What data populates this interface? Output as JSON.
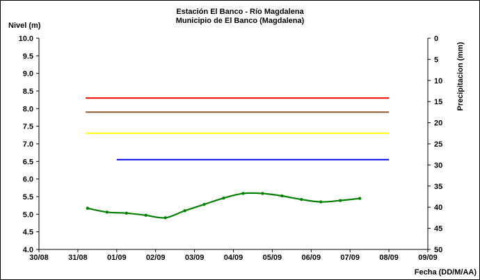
{
  "chart_data": {
    "type": "line",
    "title": "Estación El Banco - Río Magdalena",
    "subtitle": "Municipio de El Banco (Magdalena)",
    "ylabel": "Nivel (m)",
    "y2label": "Precipitacion (mm)",
    "xlabel": "Fecha (DD/M/AA)",
    "x_ticks": [
      "30/08",
      "31/08",
      "01/09",
      "02/09",
      "03/09",
      "04/09",
      "05/09",
      "06/09",
      "07/09",
      "08/09",
      "09/09"
    ],
    "y_ticks": [
      "4.0",
      "4.5",
      "5.0",
      "5.5",
      "6.0",
      "6.5",
      "7.0",
      "7.5",
      "8.0",
      "8.5",
      "9.0",
      "9.5",
      "10.0"
    ],
    "y2_ticks": [
      "0",
      "5",
      "10",
      "15",
      "20",
      "25",
      "30",
      "35",
      "40",
      "45",
      "50"
    ],
    "ylim": [
      4.0,
      10.0
    ],
    "y2lim": [
      0,
      50
    ],
    "y2_inverted": true,
    "grid": false,
    "reference_lines": [
      {
        "color": "#ff0000",
        "y": 8.3,
        "x_start": 1.2,
        "x_end": 9.0
      },
      {
        "color": "#8b5a2b",
        "y": 7.9,
        "x_start": 1.2,
        "x_end": 9.0
      },
      {
        "color": "#ffff00",
        "y": 7.3,
        "x_start": 1.2,
        "x_end": 9.0
      },
      {
        "color": "#0000ff",
        "y": 6.55,
        "x_start": 2.0,
        "x_end": 9.0
      }
    ],
    "series": [
      {
        "color": "#008000",
        "x": [
          1.25,
          1.75,
          2.25,
          2.75,
          3.25,
          3.75,
          4.25,
          4.75,
          5.25,
          5.75,
          6.25,
          6.75,
          7.25,
          7.75,
          8.25
        ],
        "values": [
          5.17,
          5.06,
          5.03,
          4.97,
          4.9,
          5.1,
          5.28,
          5.46,
          5.59,
          5.59,
          5.52,
          5.42,
          5.35,
          5.39,
          5.45
        ]
      }
    ]
  }
}
